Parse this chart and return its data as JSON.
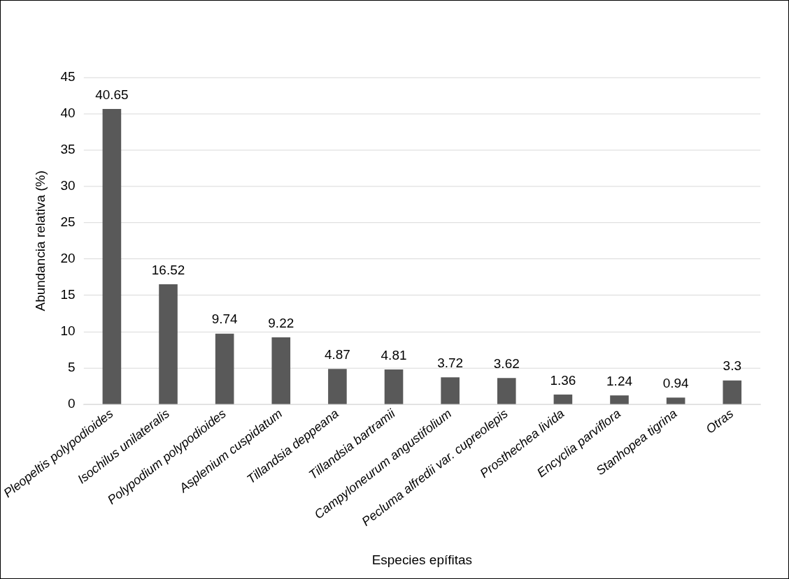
{
  "chart_data": {
    "type": "bar",
    "xlabel": "Especies epífitas",
    "ylabel": "Abundancia relativa (%)",
    "categories": [
      "Pleopeltis polypodioides",
      "Isochilus unilateralis",
      "Polypodium polypodioides",
      "Asplenium cuspidatum",
      "Tillandsia deppeana",
      "Tillandsia bartramii",
      "Campyloneurum angustifolium",
      "Pecluma alfredii var. cupreolepis",
      "Prosthechea livida",
      "Encyclia parviflora",
      "Stanhopea tigrina",
      "Otras"
    ],
    "values": [
      40.65,
      16.52,
      9.74,
      9.22,
      4.87,
      4.81,
      3.72,
      3.62,
      1.36,
      1.24,
      0.94,
      3.3
    ],
    "color": "#595959",
    "ylim": [
      0,
      45
    ],
    "yticks": [
      0,
      5,
      10,
      15,
      20,
      25,
      30,
      35,
      40,
      45
    ],
    "grid": "y",
    "data_labels": true,
    "legend": false
  }
}
